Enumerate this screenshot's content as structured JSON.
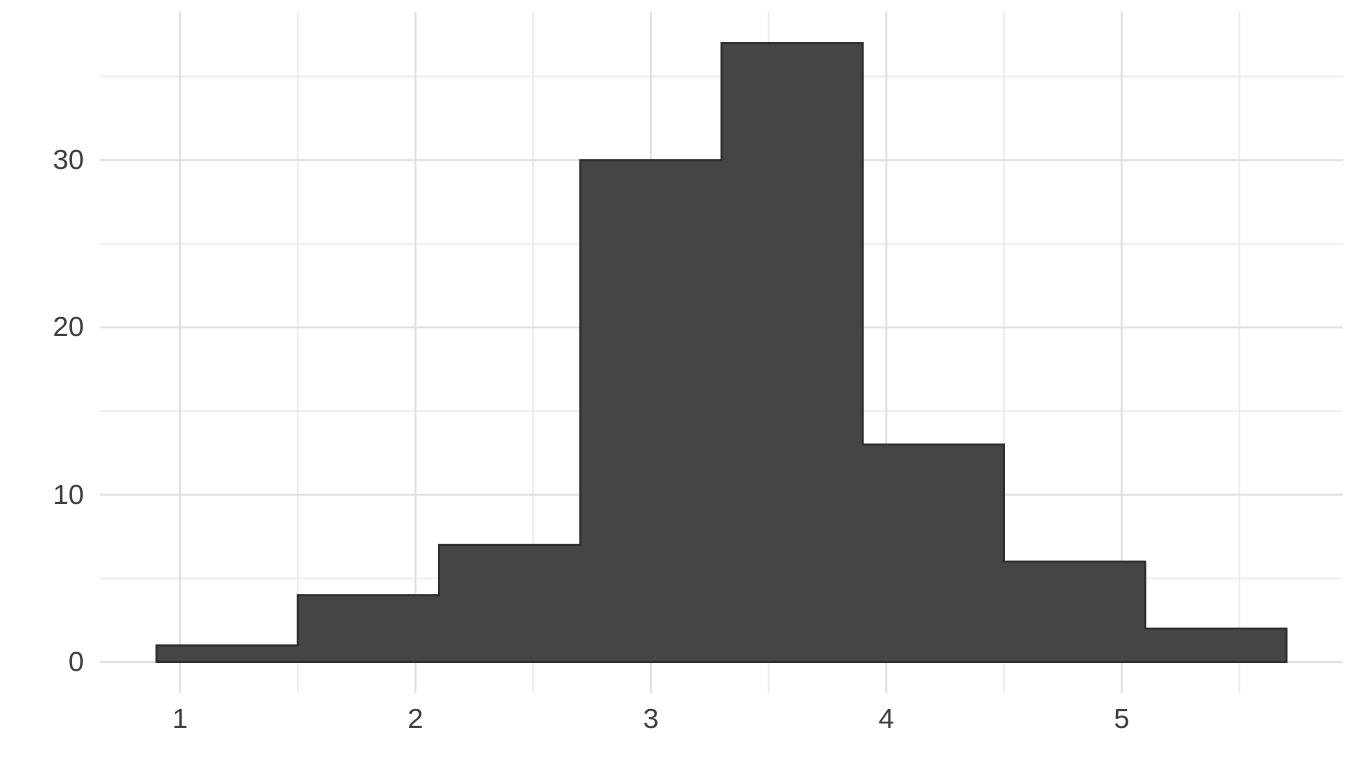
{
  "chart_data": {
    "type": "histogram",
    "title": "",
    "xlabel": "",
    "ylabel": "",
    "bin_edges": [
      0.9,
      1.5,
      2.1,
      2.7,
      3.3,
      3.9,
      4.5,
      5.1,
      5.7
    ],
    "counts": [
      1,
      4,
      7,
      30,
      37,
      13,
      6,
      2
    ],
    "x_tick_values": [
      1,
      2,
      3,
      4,
      5
    ],
    "x_tick_labels": [
      "1",
      "2",
      "3",
      "4",
      "5"
    ],
    "x_minor_ticks": [
      1.5,
      2.5,
      3.5,
      4.5,
      5.5
    ],
    "y_tick_values": [
      0,
      10,
      20,
      30
    ],
    "y_tick_labels": [
      "0",
      "10",
      "20",
      "30"
    ],
    "y_minor_ticks": [
      5,
      15,
      25,
      35
    ],
    "xlim": [
      0.66,
      5.94
    ],
    "ylim": [
      -1.85,
      38.85
    ],
    "grid": true,
    "legend": false,
    "colors": {
      "bar_fill": "#454545",
      "bar_outline": "#2d2d2d",
      "grid_major": "#e0e0e0",
      "grid_minor": "#ebebeb",
      "tick_label": "#3d3d3d",
      "background": "#ffffff"
    }
  }
}
